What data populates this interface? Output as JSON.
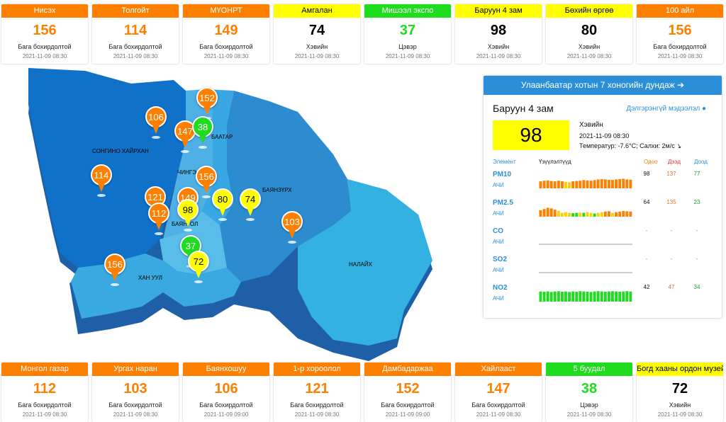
{
  "top_cards": [
    {
      "name": "Нисэх",
      "value": "156",
      "status": "Бага бохирдолтой",
      "time": "2021-11-09 08:30",
      "color": "#ff7f00"
    },
    {
      "name": "Толгойт",
      "value": "114",
      "status": "Бага бохирдолтой",
      "time": "2021-11-09 08:30",
      "color": "#ff7f00"
    },
    {
      "name": "МҮОНРТ",
      "value": "149",
      "status": "Бага бохирдолтой",
      "time": "2021-11-09 08:30",
      "color": "#ff7f00"
    },
    {
      "name": "Амгалан",
      "value": "74",
      "status": "Хэвийн",
      "time": "2021-11-09 08:30",
      "color": "#ffff00"
    },
    {
      "name": "Мишээл экспо",
      "value": "37",
      "status": "Цэвэр",
      "time": "2021-11-09 08:30",
      "color": "#1fdc1f"
    },
    {
      "name": "Баруун 4 зам",
      "value": "98",
      "status": "Хэвийн",
      "time": "2021-11-09 08:30",
      "color": "#ffff00"
    },
    {
      "name": "Бөхийн өргөө",
      "value": "80",
      "status": "Хэвийн",
      "time": "2021-11-09 08:30",
      "color": "#ffff00"
    },
    {
      "name": "100 айл",
      "value": "156",
      "status": "Бага бохирдолтой",
      "time": "2021-11-09 08:30",
      "color": "#ff7f00"
    }
  ],
  "bottom_cards": [
    {
      "name": "Монгол газар",
      "value": "112",
      "status": "Бага бохирдолтой",
      "time": "2021-11-09 08:30",
      "color": "#ff7f00"
    },
    {
      "name": "Ургах наран",
      "value": "103",
      "status": "Бага бохирдолтой",
      "time": "2021-11-09 08:30",
      "color": "#ff7f00"
    },
    {
      "name": "Баянхошуу",
      "value": "106",
      "status": "Бага бохирдолтой",
      "time": "2021-11-09 09:00",
      "color": "#ff7f00"
    },
    {
      "name": "1-р хороолол",
      "value": "121",
      "status": "Бага бохирдолтой",
      "time": "2021-11-09 08:30",
      "color": "#ff7f00"
    },
    {
      "name": "Дамбадаржаа",
      "value": "152",
      "status": "Бага бохирдолтой",
      "time": "2021-11-09 09:00",
      "color": "#ff7f00"
    },
    {
      "name": "Хайлааст",
      "value": "147",
      "status": "Бага бохирдолтой",
      "time": "2021-11-09 08:30",
      "color": "#ff7f00"
    },
    {
      "name": "5 буудал",
      "value": "38",
      "status": "Цэвэр",
      "time": "2021-11-09 08:30",
      "color": "#1fdc1f"
    },
    {
      "name": "Богд хааны ордон музей",
      "value": "72",
      "status": "Хэвийн",
      "time": "2021-11-09 08:30",
      "color": "#ffff00"
    }
  ],
  "map": {
    "district_labels": [
      "СОНГИНО ХАЙРХАН",
      "БАЯНЗҮРХ",
      "НАЛАЙХ",
      "ХАН УУЛ",
      "ЧИНГЭ",
      "БААТАР",
      "БАЯНГОЛ"
    ],
    "markers": [
      {
        "value": "152",
        "color": "#ff7f00"
      },
      {
        "value": "106",
        "color": "#ff7f00"
      },
      {
        "value": "147",
        "color": "#ff7f00"
      },
      {
        "value": "38",
        "color": "#1fdc1f"
      },
      {
        "value": "114",
        "color": "#ff7f00"
      },
      {
        "value": "156",
        "color": "#ff7f00"
      },
      {
        "value": "121",
        "color": "#ff7f00"
      },
      {
        "value": "149",
        "color": "#ff7f00"
      },
      {
        "value": "80",
        "color": "#ffff00"
      },
      {
        "value": "74",
        "color": "#ffff00"
      },
      {
        "value": "112",
        "color": "#ff7f00"
      },
      {
        "value": "98",
        "color": "#ffff00"
      },
      {
        "value": "103",
        "color": "#ff7f00"
      },
      {
        "value": "37",
        "color": "#1fdc1f"
      },
      {
        "value": "156",
        "color": "#ff7f00"
      },
      {
        "value": "72",
        "color": "#ffff00"
      }
    ]
  },
  "panel": {
    "title": "Улаанбаатар хотын 7 хоногийн дундаж",
    "station": "Баруун 4 зам",
    "more_link": "Дэлгэрэнгүй мэдээлэл",
    "aqi": "98",
    "aqi_color": "#ffff00",
    "status": "Хэвийн",
    "time": "2021-11-09 08:30",
    "weather": "Температур: -7.6°C; Салхи: 2м/с",
    "headers": {
      "element": "Элемент",
      "indicators": "Үзүүлэлтүүд",
      "now": "Одоо",
      "max": "Дээд",
      "min": "Доод"
    },
    "pollutants": [
      {
        "name": "PM10",
        "unit": "АЧИ",
        "now": "98",
        "max": "137",
        "min": "77",
        "bars": [
          0.55,
          0.6,
          0.62,
          0.58,
          0.55,
          0.6,
          0.55,
          0.5,
          0.48,
          0.55,
          0.58,
          0.6,
          0.65,
          0.62,
          0.6,
          0.65,
          0.7,
          0.72,
          0.7,
          0.68,
          0.66,
          0.7,
          0.72,
          0.75,
          0.7,
          0.68
        ],
        "colors": [
          "#ff7f00",
          "#ff7f00",
          "#ff7f00",
          "#ff7f00",
          "#ff7f00",
          "#ff7f00",
          "#ff7f00",
          "#ffd000",
          "#ffd000",
          "#ff7f00",
          "#ff7f00",
          "#ff7f00",
          "#ff7f00",
          "#ff7f00",
          "#ff7f00",
          "#ff7f00",
          "#ff7f00",
          "#ff7f00",
          "#ff7f00",
          "#ff7f00",
          "#ff7f00",
          "#ff7f00",
          "#ff7f00",
          "#ff7f00",
          "#ff7f00",
          "#ff7f00"
        ]
      },
      {
        "name": "PM2.5",
        "unit": "АЧИ",
        "now": "64",
        "max": "135",
        "min": "23",
        "bars": [
          0.5,
          0.6,
          0.7,
          0.65,
          0.55,
          0.45,
          0.3,
          0.35,
          0.3,
          0.28,
          0.3,
          0.32,
          0.3,
          0.35,
          0.3,
          0.25,
          0.3,
          0.35,
          0.4,
          0.42,
          0.3,
          0.35,
          0.4,
          0.45,
          0.42,
          0.4
        ],
        "colors": [
          "#ff7f00",
          "#ff7f00",
          "#ff7f00",
          "#ff7f00",
          "#ff7f00",
          "#ffd000",
          "#ffd000",
          "#ffd000",
          "#ffd000",
          "#1fdc1f",
          "#1fdc1f",
          "#ffd000",
          "#1fdc1f",
          "#ffd000",
          "#ffd000",
          "#1fdc1f",
          "#ffd000",
          "#ffd000",
          "#ff7f00",
          "#ff7f00",
          "#ffd000",
          "#ff7f00",
          "#ff7f00",
          "#ff7f00",
          "#ff7f00",
          "#ff7f00"
        ]
      },
      {
        "name": "CO",
        "unit": "АЧИ",
        "now": "-",
        "max": "-",
        "min": "-",
        "bars": [],
        "colors": []
      },
      {
        "name": "SO2",
        "unit": "АЧИ",
        "now": "-",
        "max": "-",
        "min": "-",
        "bars": [],
        "colors": []
      },
      {
        "name": "NO2",
        "unit": "АЧИ",
        "now": "42",
        "max": "47",
        "min": "34",
        "bars": [
          0.8,
          0.78,
          0.8,
          0.76,
          0.8,
          0.82,
          0.78,
          0.8,
          0.76,
          0.8,
          0.78,
          0.82,
          0.8,
          0.78,
          0.76,
          0.8,
          0.82,
          0.8,
          0.78,
          0.8,
          0.82,
          0.8,
          0.78,
          0.8,
          0.82,
          0.8
        ],
        "colors": [
          "#1fdc1f"
        ]
      }
    ]
  }
}
